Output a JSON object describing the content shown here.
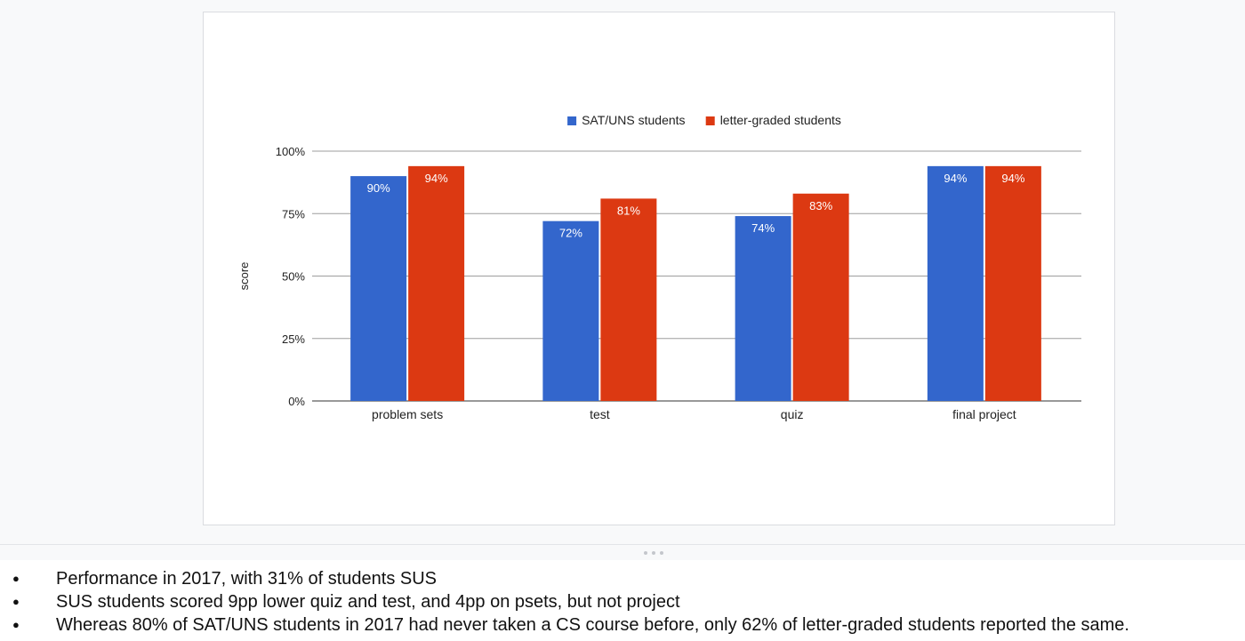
{
  "chart_data": {
    "type": "bar",
    "title": "",
    "xlabel": "",
    "ylabel": "score",
    "ylim": [
      0,
      100
    ],
    "yticks": [
      "0%",
      "25%",
      "50%",
      "75%",
      "100%"
    ],
    "categories": [
      "problem sets",
      "test",
      "quiz",
      "final project"
    ],
    "series": [
      {
        "name": "SAT/UNS students",
        "values": [
          90,
          72,
          74,
          94
        ],
        "labels": [
          "90%",
          "72%",
          "74%",
          "94%"
        ],
        "color": "#3366cc"
      },
      {
        "name": "letter-graded students",
        "values": [
          94,
          81,
          83,
          94
        ],
        "labels": [
          "94%",
          "81%",
          "83%",
          "94%"
        ],
        "color": "#dc3912"
      }
    ],
    "legend": "top-center",
    "grid": true
  },
  "speaker_notes": {
    "bullet_glyph": "●",
    "items": [
      "Performance in 2017, with 31% of students SUS",
      "SUS students scored 9pp lower quiz and test, and 4pp on psets, but not project",
      "Whereas 80% of SAT/UNS students in 2017 had never taken a CS course before, only 62% of letter-graded students reported the same."
    ]
  }
}
